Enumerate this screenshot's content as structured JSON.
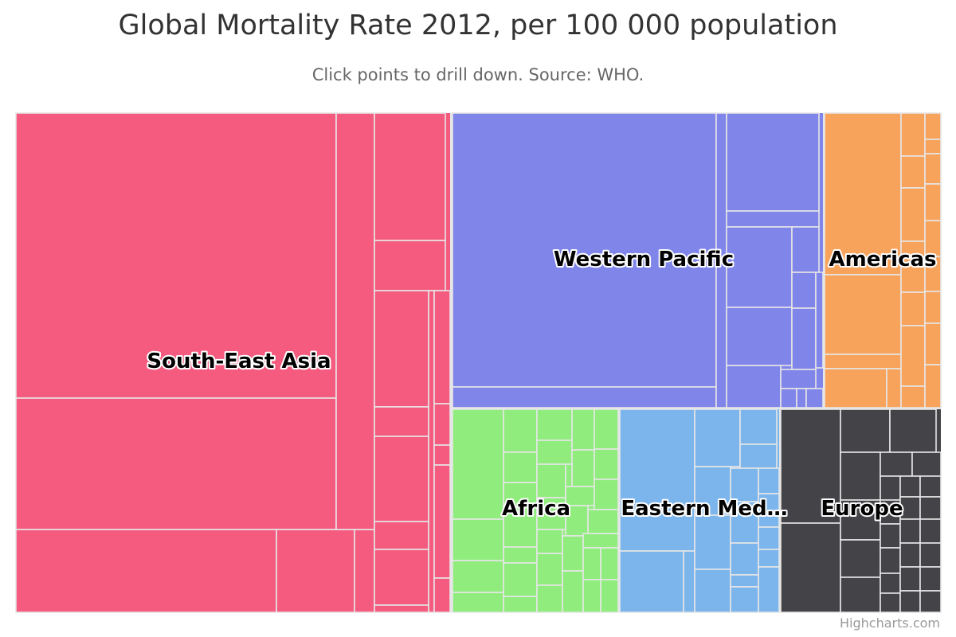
{
  "title": "Global Mortality Rate 2012, per 100 000 population",
  "subtitle": "Click points to drill down. Source: WHO.",
  "credits": "Highcharts.com",
  "chart_data": {
    "type": "treemap",
    "title": "Global Mortality Rate 2012, per 100 000 population",
    "subtitle": "Click points to drill down. Source: WHO.",
    "colors": {
      "South-East Asia": "#f45b7f",
      "Western Pacific": "#8085e9",
      "Americas": "#f7a35c",
      "Africa": "#90ed7d",
      "Eastern Mediterranean": "#7cb5ec",
      "Europe": "#434348"
    },
    "regions": [
      {
        "name": "South-East Asia",
        "label": "South-East Asia",
        "value": 10300
      },
      {
        "name": "Western Pacific",
        "label": "Western Pacific",
        "value": 5180
      },
      {
        "name": "Americas",
        "label": "Americas",
        "value": 1390
      },
      {
        "name": "Africa",
        "label": "Africa",
        "value": 2090
      },
      {
        "name": "Eastern Mediterranean",
        "label": "Eastern Med…",
        "value": 2080
      },
      {
        "name": "Europe",
        "label": "Europe",
        "value": 2000
      }
    ]
  }
}
